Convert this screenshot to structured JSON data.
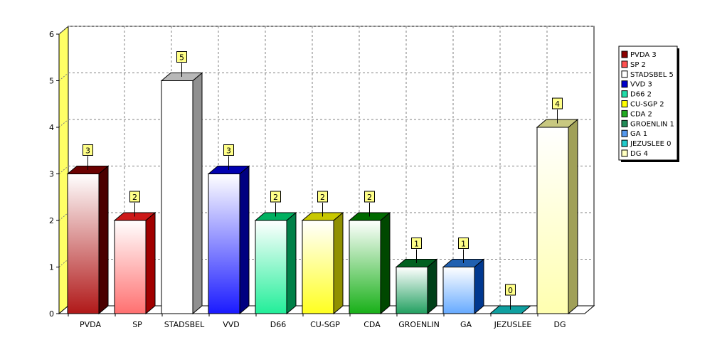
{
  "chart_data": {
    "type": "bar",
    "categories": [
      "PVDA",
      "SP",
      "STADSBEL",
      "VVD",
      "D66",
      "CU-SGP",
      "CDA",
      "GROENLIN",
      "GA",
      "JEZUSLEE",
      "DG"
    ],
    "values": [
      3,
      2,
      5,
      3,
      2,
      2,
      2,
      1,
      1,
      0,
      4
    ],
    "data_labels": [
      "3",
      "2",
      "5",
      "3",
      "2",
      "2",
      "2",
      "1",
      "1",
      "0",
      "4"
    ],
    "yticks": [
      "0",
      "1",
      "2",
      "3",
      "4",
      "5",
      "6"
    ],
    "ylim": [
      0,
      6
    ],
    "grid": true,
    "legend_position": "top-right",
    "legend": [
      "PVDA 3",
      "SP 2",
      "STADSBEL 5",
      "VVD 3",
      "D66 2",
      "CU-SGP 2",
      "CDA 2",
      "GROENLIN 1",
      "GA 1",
      "JEZUSLEE 0",
      "DG 4"
    ],
    "colors": {
      "front": [
        "#b01818",
        "#ff7070",
        "#ffffff",
        "#1a1aff",
        "#22ee99",
        "#ffff20",
        "#18b018",
        "#22a060",
        "#66aaff",
        "#22cccc",
        "#ffffb0"
      ],
      "top": [
        "#6a0000",
        "#cc1818",
        "#b8b8b8",
        "#0000b0",
        "#00b060",
        "#c8c800",
        "#006a00",
        "#006020",
        "#2060b0",
        "#10a0a0",
        "#c8c880"
      ],
      "side": [
        "#4a0000",
        "#a00000",
        "#909090",
        "#000080",
        "#008048",
        "#909000",
        "#004800",
        "#004018",
        "#003890",
        "#088080",
        "#a0a058"
      ],
      "legend_swatch": [
        "#8b0000",
        "#ff5050",
        "#ffffff",
        "#0000cc",
        "#22ddaa",
        "#ffff00",
        "#22aa22",
        "#228b57",
        "#5599ee",
        "#22cccc",
        "#ffffc0"
      ],
      "left_wall": "#ffff66",
      "label_box": "#ffff88"
    }
  }
}
